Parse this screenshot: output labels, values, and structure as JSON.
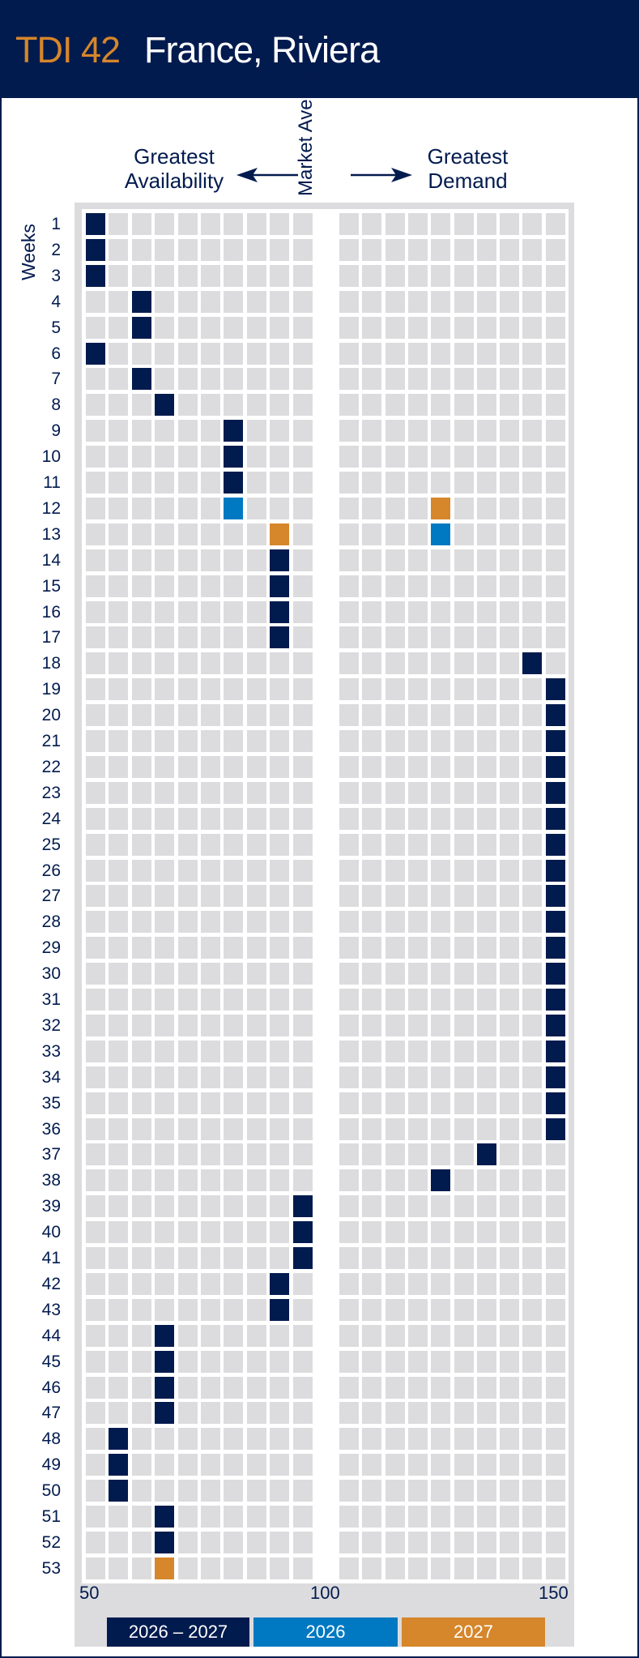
{
  "header": {
    "code": "TDI 42",
    "name": "France, Riviera"
  },
  "chart_data": {
    "type": "heatmap",
    "title": "TDI 42 France, Riviera",
    "ylabel": "Weeks",
    "left_label": "Greatest Availability",
    "center_label": "Market Average",
    "right_label": "Greatest Demand",
    "x_ticks": [
      "50",
      "100",
      "150"
    ],
    "xlim": [
      50,
      150
    ],
    "bin_width": 5,
    "legend": [
      {
        "key": "both",
        "label": "2026 – 2027",
        "color": "#021b4e"
      },
      {
        "key": "2026",
        "label": "2026",
        "color": "#0079c2"
      },
      {
        "key": "2027",
        "label": "2027",
        "color": "#d6862b"
      }
    ],
    "weeks": [
      {
        "week": "1",
        "marks": [
          [
            50,
            "both"
          ]
        ]
      },
      {
        "week": "2",
        "marks": [
          [
            50,
            "both"
          ]
        ]
      },
      {
        "week": "3",
        "marks": [
          [
            50,
            "both"
          ]
        ]
      },
      {
        "week": "4",
        "marks": [
          [
            60,
            "both"
          ]
        ]
      },
      {
        "week": "5",
        "marks": [
          [
            60,
            "both"
          ]
        ]
      },
      {
        "week": "6",
        "marks": [
          [
            50,
            "both"
          ]
        ]
      },
      {
        "week": "7",
        "marks": [
          [
            60,
            "both"
          ]
        ]
      },
      {
        "week": "8",
        "marks": [
          [
            65,
            "both"
          ]
        ]
      },
      {
        "week": "9",
        "marks": [
          [
            80,
            "both"
          ]
        ]
      },
      {
        "week": "10",
        "marks": [
          [
            80,
            "both"
          ]
        ]
      },
      {
        "week": "11",
        "marks": [
          [
            80,
            "both"
          ]
        ]
      },
      {
        "week": "12",
        "marks": [
          [
            80,
            "2026"
          ],
          [
            120,
            "2027"
          ]
        ]
      },
      {
        "week": "13",
        "marks": [
          [
            90,
            "2027"
          ],
          [
            120,
            "2026"
          ]
        ]
      },
      {
        "week": "14",
        "marks": [
          [
            90,
            "both"
          ]
        ]
      },
      {
        "week": "15",
        "marks": [
          [
            90,
            "both"
          ]
        ]
      },
      {
        "week": "16",
        "marks": [
          [
            90,
            "both"
          ]
        ]
      },
      {
        "week": "17",
        "marks": [
          [
            90,
            "both"
          ]
        ]
      },
      {
        "week": "18",
        "marks": [
          [
            140,
            "both"
          ]
        ]
      },
      {
        "week": "19",
        "marks": [
          [
            145,
            "both"
          ]
        ]
      },
      {
        "week": "20",
        "marks": [
          [
            145,
            "both"
          ]
        ]
      },
      {
        "week": "21",
        "marks": [
          [
            145,
            "both"
          ]
        ]
      },
      {
        "week": "22",
        "marks": [
          [
            145,
            "both"
          ]
        ]
      },
      {
        "week": "23",
        "marks": [
          [
            145,
            "both"
          ]
        ]
      },
      {
        "week": "24",
        "marks": [
          [
            145,
            "both"
          ]
        ]
      },
      {
        "week": "25",
        "marks": [
          [
            145,
            "both"
          ]
        ]
      },
      {
        "week": "26",
        "marks": [
          [
            145,
            "both"
          ]
        ]
      },
      {
        "week": "27",
        "marks": [
          [
            145,
            "both"
          ]
        ]
      },
      {
        "week": "28",
        "marks": [
          [
            145,
            "both"
          ]
        ]
      },
      {
        "week": "29",
        "marks": [
          [
            145,
            "both"
          ]
        ]
      },
      {
        "week": "30",
        "marks": [
          [
            145,
            "both"
          ]
        ]
      },
      {
        "week": "31",
        "marks": [
          [
            145,
            "both"
          ]
        ]
      },
      {
        "week": "32",
        "marks": [
          [
            145,
            "both"
          ]
        ]
      },
      {
        "week": "33",
        "marks": [
          [
            145,
            "both"
          ]
        ]
      },
      {
        "week": "34",
        "marks": [
          [
            145,
            "both"
          ]
        ]
      },
      {
        "week": "35",
        "marks": [
          [
            145,
            "both"
          ]
        ]
      },
      {
        "week": "36",
        "marks": [
          [
            145,
            "both"
          ]
        ]
      },
      {
        "week": "37",
        "marks": [
          [
            130,
            "both"
          ]
        ]
      },
      {
        "week": "38",
        "marks": [
          [
            120,
            "both"
          ]
        ]
      },
      {
        "week": "39",
        "marks": [
          [
            95,
            "both"
          ]
        ]
      },
      {
        "week": "40",
        "marks": [
          [
            95,
            "both"
          ]
        ]
      },
      {
        "week": "41",
        "marks": [
          [
            95,
            "both"
          ]
        ]
      },
      {
        "week": "42",
        "marks": [
          [
            90,
            "both"
          ]
        ]
      },
      {
        "week": "43",
        "marks": [
          [
            90,
            "both"
          ]
        ]
      },
      {
        "week": "44",
        "marks": [
          [
            65,
            "both"
          ]
        ]
      },
      {
        "week": "45",
        "marks": [
          [
            65,
            "both"
          ]
        ]
      },
      {
        "week": "46",
        "marks": [
          [
            65,
            "both"
          ]
        ]
      },
      {
        "week": "47",
        "marks": [
          [
            65,
            "both"
          ]
        ]
      },
      {
        "week": "48",
        "marks": [
          [
            55,
            "both"
          ]
        ]
      },
      {
        "week": "49",
        "marks": [
          [
            55,
            "both"
          ]
        ]
      },
      {
        "week": "50",
        "marks": [
          [
            55,
            "both"
          ]
        ]
      },
      {
        "week": "51",
        "marks": [
          [
            65,
            "both"
          ]
        ]
      },
      {
        "week": "52",
        "marks": [
          [
            65,
            "both"
          ]
        ]
      },
      {
        "week": "53",
        "marks": [
          [
            65,
            "2027"
          ]
        ]
      }
    ]
  }
}
